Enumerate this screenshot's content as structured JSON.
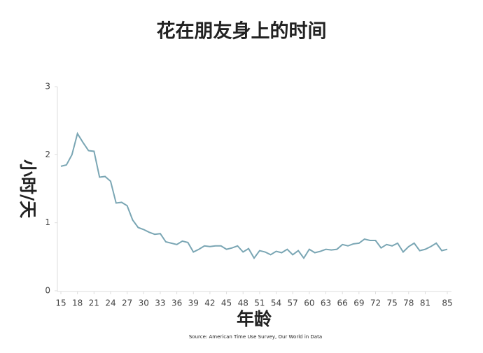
{
  "chart_data": {
    "type": "line",
    "title": "花在朋友身上的时间",
    "x_label": "年龄",
    "y_label": "小时/天",
    "source": "Source: American Time Use Survey, Our World in Data",
    "x": [
      15,
      16,
      17,
      18,
      19,
      20,
      21,
      22,
      23,
      24,
      25,
      26,
      27,
      28,
      29,
      30,
      31,
      32,
      33,
      34,
      35,
      36,
      37,
      38,
      39,
      40,
      41,
      42,
      43,
      44,
      45,
      46,
      47,
      48,
      49,
      50,
      51,
      52,
      53,
      54,
      55,
      56,
      57,
      58,
      59,
      60,
      61,
      62,
      63,
      64,
      65,
      66,
      67,
      68,
      69,
      70,
      71,
      72,
      73,
      74,
      75,
      76,
      77,
      78,
      79,
      80,
      81,
      82,
      83,
      84,
      85
    ],
    "values": [
      1.83,
      1.85,
      2.0,
      2.31,
      2.18,
      2.06,
      2.05,
      1.67,
      1.68,
      1.61,
      1.29,
      1.3,
      1.25,
      1.04,
      0.93,
      0.9,
      0.86,
      0.83,
      0.84,
      0.72,
      0.7,
      0.68,
      0.73,
      0.71,
      0.57,
      0.61,
      0.66,
      0.65,
      0.66,
      0.66,
      0.61,
      0.63,
      0.66,
      0.57,
      0.62,
      0.48,
      0.59,
      0.57,
      0.53,
      0.58,
      0.56,
      0.61,
      0.53,
      0.59,
      0.48,
      0.61,
      0.56,
      0.58,
      0.61,
      0.6,
      0.61,
      0.68,
      0.66,
      0.69,
      0.7,
      0.76,
      0.74,
      0.74,
      0.63,
      0.68,
      0.66,
      0.7,
      0.57,
      0.65,
      0.7,
      0.59,
      0.61,
      0.65,
      0.7,
      0.59,
      0.61
    ],
    "color": "#7aa6b4",
    "xlim": [
      15,
      85
    ],
    "xticks": [
      15,
      18,
      21,
      24,
      27,
      30,
      33,
      36,
      39,
      42,
      45,
      48,
      51,
      54,
      57,
      60,
      63,
      66,
      69,
      72,
      75,
      78,
      81,
      85
    ],
    "ylim": [
      0,
      3
    ],
    "yticks": [
      0,
      1,
      2,
      3
    ]
  }
}
